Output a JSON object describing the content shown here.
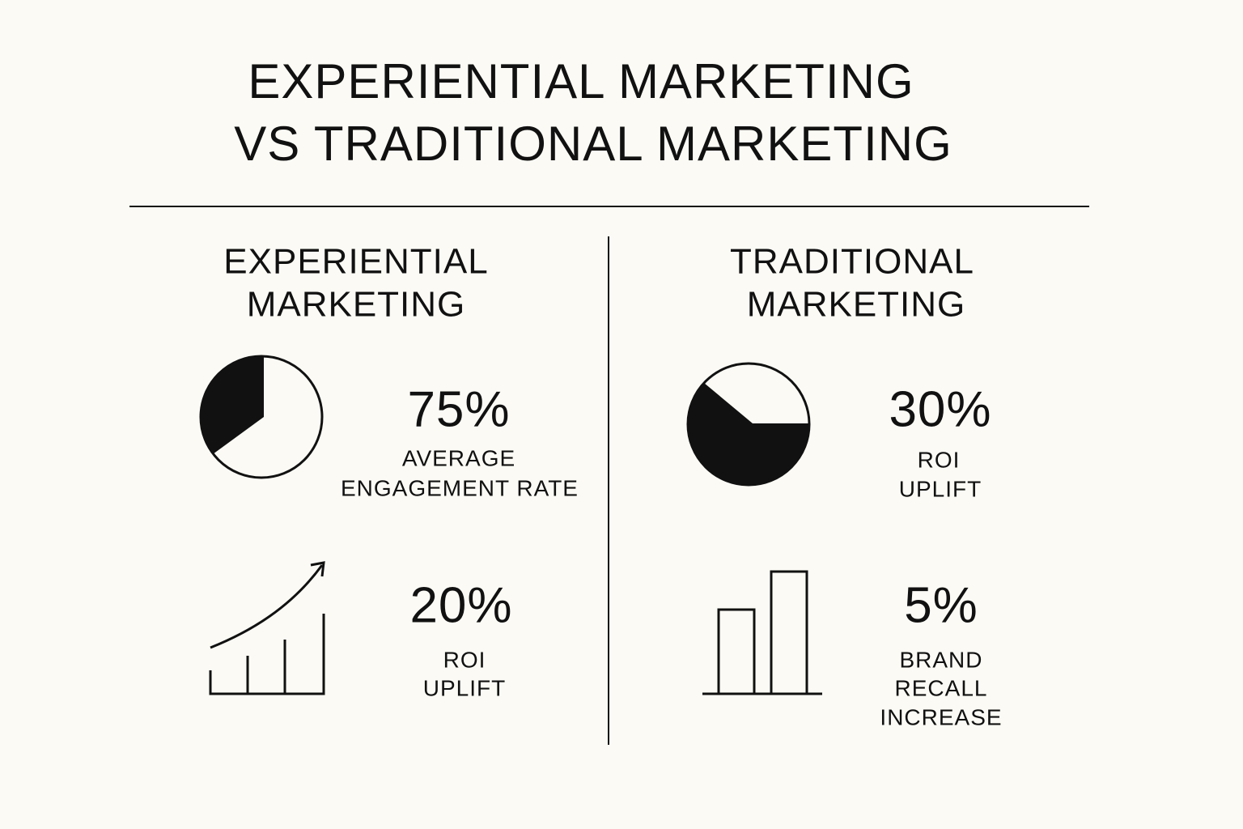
{
  "header": {
    "title": [
      "EXPERIENTIAL MARKETING",
      "VS TRADITIONAL MARKETING"
    ]
  },
  "sections": [
    {
      "title": [
        "EXPERIENTIAL",
        "MARKETING"
      ],
      "stats": [
        {
          "value": "75%",
          "label": [
            "AVERAGE",
            "ENGAGEMENT RATE"
          ]
        },
        {
          "value": "20%",
          "label": [
            "ROI",
            "UPLIFT"
          ]
        }
      ]
    },
    {
      "title": [
        "TRADITIONAL",
        "MARKETING"
      ],
      "stats": [
        {
          "value": "30%",
          "label": [
            "ROI",
            "UPLIFT"
          ]
        },
        {
          "value": "5%",
          "label": [
            "BRAND",
            "RECALL",
            "INCREASE"
          ]
        }
      ]
    }
  ]
}
